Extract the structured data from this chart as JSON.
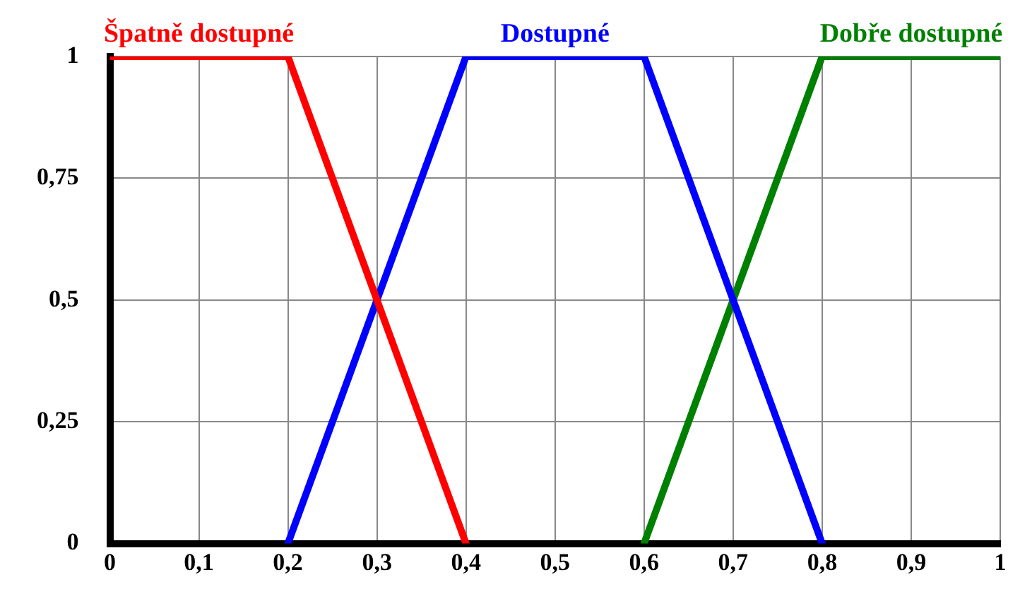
{
  "chart_data": {
    "type": "line",
    "xlim": [
      0,
      1
    ],
    "ylim": [
      0,
      1
    ],
    "xticks": [
      0,
      {
        "value": 0.1,
        "label": "0,1"
      },
      {
        "value": 0.2,
        "label": "0,2"
      },
      {
        "value": 0.3,
        "label": "0,3"
      },
      {
        "value": 0.4,
        "label": "0,4"
      },
      {
        "value": 0.5,
        "label": "0,5"
      },
      {
        "value": 0.6,
        "label": "0,6"
      },
      {
        "value": 0.7,
        "label": "0,7"
      },
      {
        "value": 0.8,
        "label": "0,8"
      },
      {
        "value": 0.9,
        "label": "0,9"
      },
      1
    ],
    "yticks": [
      0,
      {
        "value": 0.25,
        "label": "0,25"
      },
      {
        "value": 0.5,
        "label": "0,5"
      },
      {
        "value": 0.75,
        "label": "0,75"
      },
      1
    ],
    "grid": true,
    "legend": false,
    "marker": "none",
    "line_style": "solid",
    "series": [
      {
        "name": "Špatně dostupné",
        "color": "#ff0000",
        "x": [
          0,
          0.2,
          0.4
        ],
        "values": [
          1,
          1,
          0
        ]
      },
      {
        "name": "Dostupné",
        "color": "#0000ff",
        "x": [
          0.2,
          0.4,
          0.6,
          0.8
        ],
        "values": [
          0,
          1,
          1,
          0
        ]
      },
      {
        "name": "Dobře dostupné",
        "color": "#008000",
        "x": [
          0.6,
          0.8,
          1
        ],
        "values": [
          0,
          1,
          1
        ]
      }
    ]
  }
}
